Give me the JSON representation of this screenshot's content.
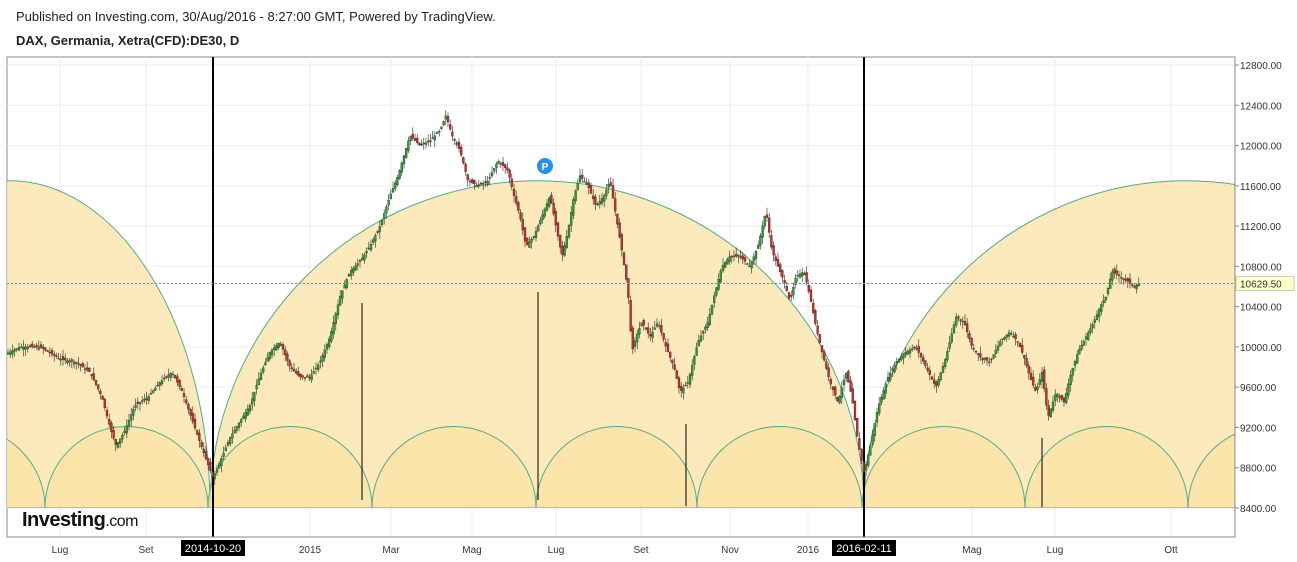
{
  "header": {
    "published": "Published on Investing.com, 30/Aug/2016 - 8:27:00 GMT, Powered by TradingView.",
    "symbol": "DAX, Germania, Xetra(CFD):DE30, D"
  },
  "logo": {
    "main": "Investing",
    "suffix": ".com"
  },
  "colors": {
    "up": "#2e9b33",
    "down": "#c0302a",
    "arc_fill": "#fbe3a6",
    "arc_stroke": "#55a987",
    "price_line": "#22cc22",
    "price_label_bg": "#ffffcc"
  },
  "chart_data": {
    "type": "candlestick",
    "ylim": [
      8350,
      12900
    ],
    "y_ticks": [
      "12800.00",
      "12400.00",
      "12000.00",
      "11600.00",
      "11200.00",
      "10800.00",
      "10400.00",
      "10000.00",
      "9600.00",
      "9200.00",
      "8800.00",
      "8400.00"
    ],
    "y_tick_values": [
      12800,
      12400,
      12000,
      11600,
      11200,
      10800,
      10400,
      10000,
      9600,
      9200,
      8800,
      8400
    ],
    "x_ticks": [
      {
        "label": "Lug",
        "px": 60
      },
      {
        "label": "Set",
        "px": 146
      },
      {
        "label": "2015",
        "px": 310
      },
      {
        "label": "Mar",
        "px": 391
      },
      {
        "label": "Mag",
        "px": 472
      },
      {
        "label": "Lug",
        "px": 556
      },
      {
        "label": "Set",
        "px": 641
      },
      {
        "label": "Nov",
        "px": 730
      },
      {
        "label": "2016",
        "px": 808
      },
      {
        "label": "Mag",
        "px": 972
      },
      {
        "label": "Lug",
        "px": 1055
      },
      {
        "label": "Ott",
        "px": 1171
      }
    ],
    "cycle_markers": [
      "2014-10-20",
      "2016-02-11"
    ],
    "last_price": "10629.50",
    "last_price_value": 10629.5,
    "price_path": [
      [
        8,
        9940
      ],
      [
        20,
        10000
      ],
      [
        40,
        10000
      ],
      [
        60,
        9880
      ],
      [
        75,
        9850
      ],
      [
        90,
        9750
      ],
      [
        102,
        9500
      ],
      [
        110,
        9200
      ],
      [
        116,
        9020
      ],
      [
        124,
        9150
      ],
      [
        135,
        9420
      ],
      [
        148,
        9500
      ],
      [
        160,
        9650
      ],
      [
        172,
        9750
      ],
      [
        182,
        9560
      ],
      [
        192,
        9280
      ],
      [
        200,
        9050
      ],
      [
        207,
        8860
      ],
      [
        213,
        8700
      ],
      [
        220,
        8860
      ],
      [
        230,
        9100
      ],
      [
        240,
        9260
      ],
      [
        250,
        9420
      ],
      [
        260,
        9720
      ],
      [
        270,
        9950
      ],
      [
        280,
        10050
      ],
      [
        290,
        9800
      ],
      [
        300,
        9700
      ],
      [
        310,
        9700
      ],
      [
        320,
        9850
      ],
      [
        330,
        10100
      ],
      [
        340,
        10500
      ],
      [
        350,
        10750
      ],
      [
        360,
        10850
      ],
      [
        370,
        11000
      ],
      [
        380,
        11200
      ],
      [
        390,
        11500
      ],
      [
        398,
        11700
      ],
      [
        404,
        11900
      ],
      [
        410,
        12100
      ],
      [
        420,
        12000
      ],
      [
        430,
        12050
      ],
      [
        440,
        12150
      ],
      [
        446,
        12300
      ],
      [
        452,
        12100
      ],
      [
        460,
        11950
      ],
      [
        468,
        11650
      ],
      [
        478,
        11600
      ],
      [
        488,
        11650
      ],
      [
        498,
        11850
      ],
      [
        508,
        11750
      ],
      [
        514,
        11500
      ],
      [
        520,
        11300
      ],
      [
        526,
        11000
      ],
      [
        534,
        11100
      ],
      [
        542,
        11300
      ],
      [
        550,
        11500
      ],
      [
        556,
        11200
      ],
      [
        562,
        10900
      ],
      [
        568,
        11150
      ],
      [
        574,
        11500
      ],
      [
        580,
        11700
      ],
      [
        588,
        11600
      ],
      [
        596,
        11400
      ],
      [
        604,
        11500
      ],
      [
        610,
        11650
      ],
      [
        616,
        11300
      ],
      [
        622,
        10950
      ],
      [
        628,
        10550
      ],
      [
        632,
        9950
      ],
      [
        636,
        10100
      ],
      [
        642,
        10250
      ],
      [
        650,
        10100
      ],
      [
        658,
        10250
      ],
      [
        666,
        10000
      ],
      [
        674,
        9800
      ],
      [
        680,
        9550
      ],
      [
        688,
        9650
      ],
      [
        698,
        10050
      ],
      [
        708,
        10250
      ],
      [
        714,
        10500
      ],
      [
        722,
        10800
      ],
      [
        730,
        10900
      ],
      [
        740,
        10900
      ],
      [
        750,
        10800
      ],
      [
        758,
        11000
      ],
      [
        766,
        11350
      ],
      [
        772,
        10950
      ],
      [
        778,
        10800
      ],
      [
        784,
        10650
      ],
      [
        790,
        10450
      ],
      [
        796,
        10700
      ],
      [
        804,
        10750
      ],
      [
        810,
        10500
      ],
      [
        816,
        10200
      ],
      [
        822,
        9950
      ],
      [
        830,
        9650
      ],
      [
        838,
        9450
      ],
      [
        846,
        9750
      ],
      [
        852,
        9500
      ],
      [
        858,
        9050
      ],
      [
        864,
        8750
      ],
      [
        870,
        9000
      ],
      [
        878,
        9400
      ],
      [
        888,
        9700
      ],
      [
        896,
        9850
      ],
      [
        906,
        9950
      ],
      [
        916,
        10000
      ],
      [
        926,
        9800
      ],
      [
        936,
        9600
      ],
      [
        946,
        9900
      ],
      [
        956,
        10300
      ],
      [
        964,
        10250
      ],
      [
        972,
        10000
      ],
      [
        980,
        9900
      ],
      [
        990,
        9850
      ],
      [
        1000,
        10050
      ],
      [
        1010,
        10150
      ],
      [
        1018,
        10050
      ],
      [
        1024,
        9900
      ],
      [
        1030,
        9700
      ],
      [
        1036,
        9550
      ],
      [
        1042,
        9750
      ],
      [
        1048,
        9300
      ],
      [
        1056,
        9550
      ],
      [
        1064,
        9450
      ],
      [
        1070,
        9700
      ],
      [
        1078,
        9950
      ],
      [
        1086,
        10100
      ],
      [
        1094,
        10250
      ],
      [
        1100,
        10400
      ],
      [
        1106,
        10500
      ],
      [
        1112,
        10750
      ],
      [
        1120,
        10700
      ],
      [
        1128,
        10650
      ],
      [
        1134,
        10600
      ],
      [
        1140,
        10630
      ]
    ]
  }
}
